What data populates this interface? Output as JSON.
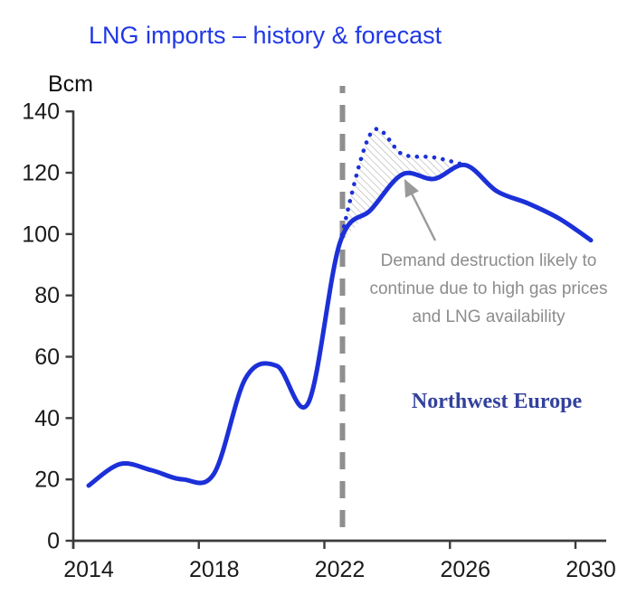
{
  "title": {
    "text": "LNG imports – history & forecast",
    "color": "#2038e6"
  },
  "y_axis": {
    "unit_label": "Bcm",
    "tick_values": [
      0,
      20,
      40,
      60,
      80,
      100,
      120,
      140
    ],
    "min": 0,
    "max": 140
  },
  "x_axis": {
    "tick_years": [
      2014,
      2018,
      2022,
      2026,
      2030
    ],
    "start_year": 2014,
    "end_year": 2030
  },
  "chart_data": {
    "type": "line",
    "title": "LNG imports – history & forecast",
    "ylabel": "Bcm",
    "ylim": [
      0,
      140
    ],
    "x_tick_labels": [
      "2014",
      "2018",
      "2022",
      "2026",
      "2030"
    ],
    "grid": false,
    "legend_position": "none",
    "forecast_divider_year": 2022,
    "series": [
      {
        "name": "lng-imports-history-and-forecast",
        "style": "solid",
        "color": "#1c30d8",
        "x": [
          2014,
          2015,
          2016,
          2017,
          2018,
          2019,
          2020,
          2021,
          2022,
          2023,
          2024,
          2025,
          2026,
          2027,
          2028,
          2029,
          2030
        ],
        "values": [
          18,
          25,
          23,
          20,
          22,
          53,
          57,
          45,
          97,
          108,
          119.5,
          118,
          122.5,
          114,
          110,
          105,
          98
        ]
      },
      {
        "name": "forecast-without-demand-destruction",
        "style": "dotted",
        "color": "#1c30d8",
        "x": [
          2022,
          2023,
          2024,
          2025,
          2026
        ],
        "values": [
          97,
          133,
          126,
          125,
          122.5
        ]
      }
    ],
    "hatched_region": {
      "between_series": [
        "forecast-without-demand-destruction",
        "lng-imports-history-and-forecast"
      ],
      "x_range": [
        2022,
        2026
      ],
      "hatch_color": "#aaaaaa"
    }
  },
  "divider": {
    "year": 2022,
    "color": "#8f8f8f",
    "style": "dashed"
  },
  "annotation": {
    "lines": [
      "Demand destruction likely to",
      "continue due to high gas prices",
      "and LNG availability"
    ],
    "color": "#8c8c8c",
    "arrow_color": "#9a9a9a"
  },
  "region_label": {
    "text": "Northwest Europe",
    "color": "#33419c"
  },
  "axis_color": "#3c3c3c",
  "tick_label_color": "#1a1a1a"
}
